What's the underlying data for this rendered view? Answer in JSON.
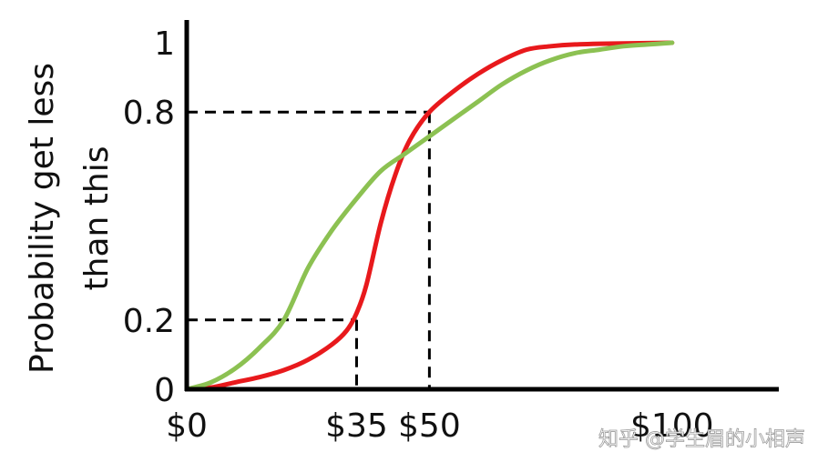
{
  "chart_data": {
    "type": "line",
    "title": "",
    "xlabel": "",
    "ylabel": [
      "Probability get less",
      "than this"
    ],
    "xlim": [
      0,
      122
    ],
    "ylim": [
      0,
      1
    ],
    "x_ticks": [
      {
        "value": 0,
        "label": "$0"
      },
      {
        "value": 35,
        "label": "$35"
      },
      {
        "value": 50,
        "label": "$50"
      },
      {
        "value": 100,
        "label": "$100"
      }
    ],
    "y_ticks": [
      {
        "value": 0,
        "label": "0"
      },
      {
        "value": 0.2,
        "label": "0.2"
      },
      {
        "value": 0.8,
        "label": "0.8"
      },
      {
        "value": 1,
        "label": "1"
      }
    ],
    "grid": false,
    "legend": "none",
    "series": [
      {
        "color": "#e8191c",
        "x": [
          0,
          5,
          10,
          15,
          20,
          25,
          30,
          33,
          35,
          37,
          40,
          43,
          46,
          50,
          55,
          60,
          65,
          70,
          75,
          80,
          85,
          90,
          95,
          100
        ],
        "y": [
          0,
          0.005,
          0.02,
          0.035,
          0.055,
          0.085,
          0.13,
          0.17,
          0.22,
          0.3,
          0.48,
          0.62,
          0.72,
          0.8,
          0.86,
          0.91,
          0.95,
          0.98,
          0.99,
          0.995,
          0.997,
          0.998,
          0.999,
          1.0
        ]
      },
      {
        "color": "#8cc152",
        "x": [
          0,
          5,
          10,
          15,
          20,
          25,
          30,
          35,
          40,
          45,
          50,
          55,
          60,
          65,
          70,
          75,
          80,
          85,
          90,
          95,
          100
        ],
        "y": [
          0,
          0.02,
          0.06,
          0.12,
          0.2,
          0.35,
          0.46,
          0.55,
          0.63,
          0.68,
          0.73,
          0.78,
          0.83,
          0.88,
          0.92,
          0.95,
          0.97,
          0.98,
          0.99,
          0.995,
          1.0
        ]
      }
    ],
    "reference_lines": [
      {
        "x": 35,
        "y": 0.2
      },
      {
        "x": 50,
        "y": 0.8
      }
    ]
  },
  "watermark": "知乎 @学生眉的小相声"
}
